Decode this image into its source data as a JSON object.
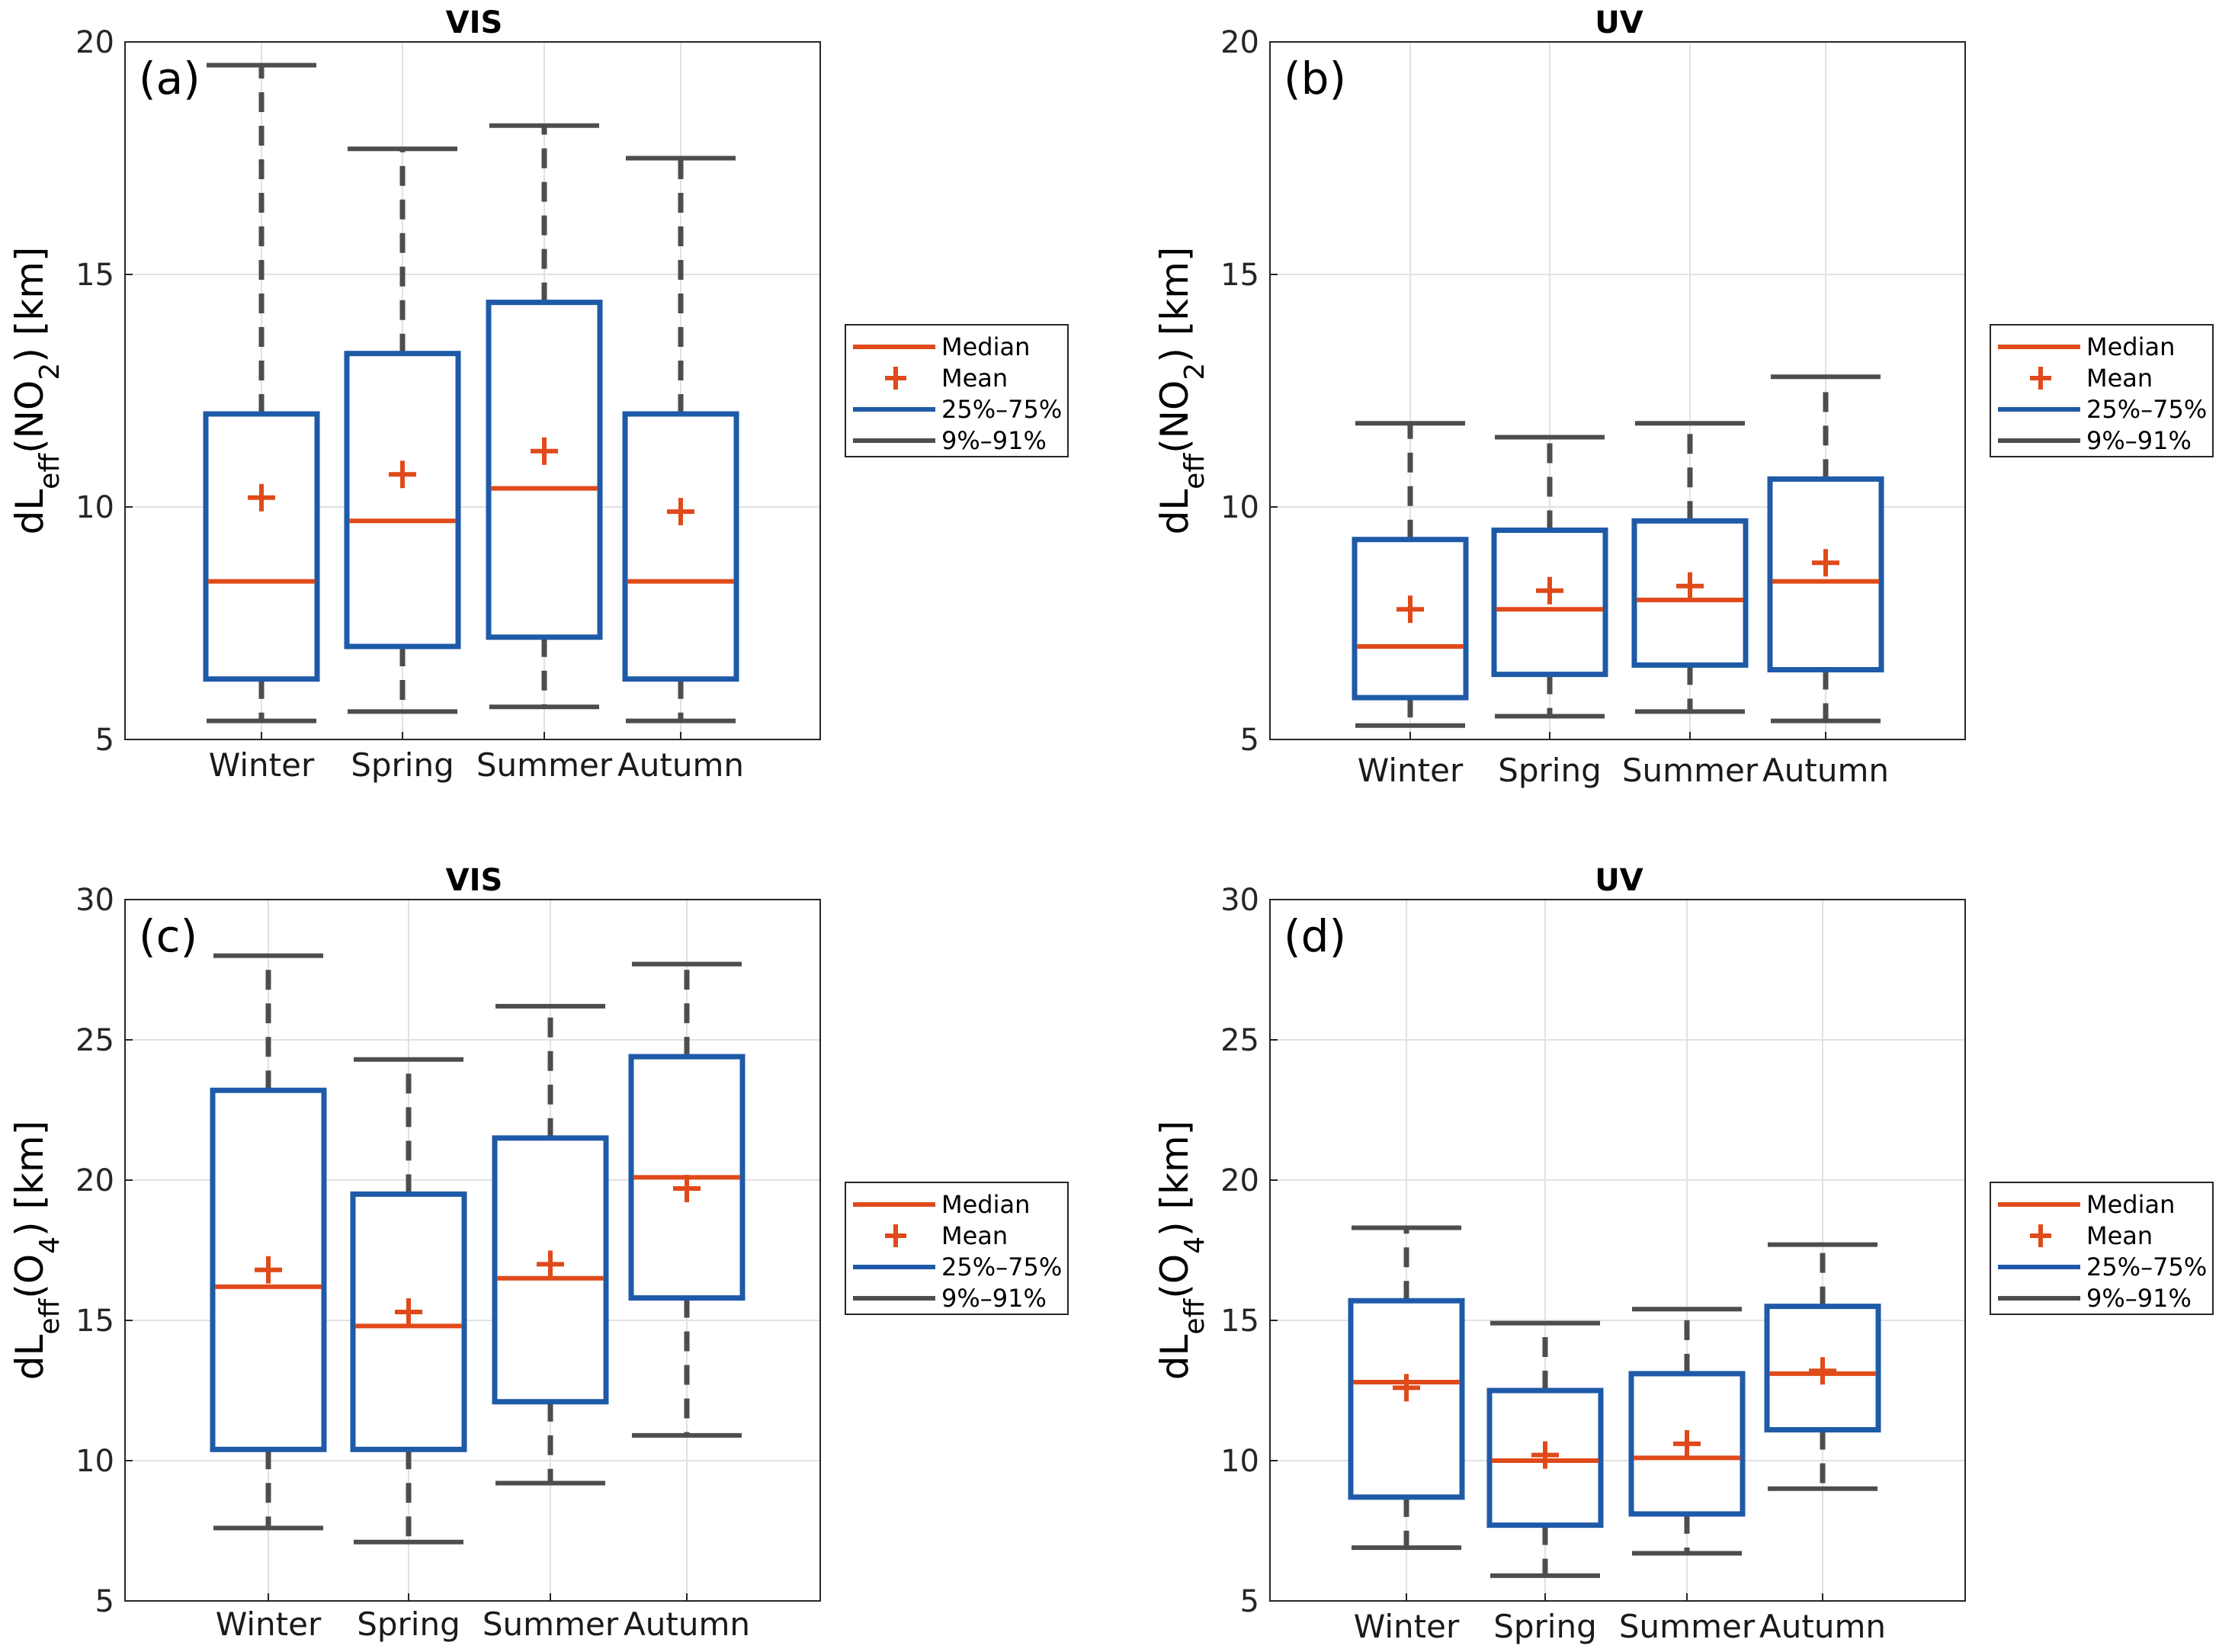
{
  "figure": {
    "panel_letters": [
      "(a)",
      "(b)",
      "(c)",
      "(d)"
    ]
  },
  "colors": {
    "median": "#e04a1a",
    "mean": "#e04a1a",
    "box": "#1f5aa8",
    "whisker": "#4d4d4d",
    "grid": "#e1e1e1",
    "axis": "#262626"
  },
  "legend": {
    "entries": [
      {
        "key": "median",
        "label": "Median",
        "symbol": "line"
      },
      {
        "key": "mean",
        "label": "Mean",
        "symbol": "plus"
      },
      {
        "key": "box",
        "label": "25%–75%",
        "symbol": "line"
      },
      {
        "key": "whisker",
        "label": "9%–91%",
        "symbol": "line"
      }
    ]
  },
  "chart_data": [
    {
      "type": "boxplot",
      "panel": "(a)",
      "title": "VIS",
      "ylabel": {
        "base": "dL",
        "sub": "eff",
        "species": "NO",
        "species_sub": "2",
        "unit": " [km]"
      },
      "ylim": [
        5,
        20
      ],
      "yticks": [
        5,
        10,
        15,
        20
      ],
      "categories": [
        "Winter",
        "Spring",
        "Summer",
        "Autumn"
      ],
      "stats": [
        {
          "p9": 5.4,
          "q1": 6.3,
          "median": 8.4,
          "mean": 10.2,
          "q3": 12.0,
          "p91": 19.5
        },
        {
          "p9": 5.6,
          "q1": 7.0,
          "median": 9.7,
          "mean": 10.7,
          "q3": 13.3,
          "p91": 17.7
        },
        {
          "p9": 5.7,
          "q1": 7.2,
          "median": 10.4,
          "mean": 11.2,
          "q3": 14.4,
          "p91": 18.2
        },
        {
          "p9": 5.4,
          "q1": 6.3,
          "median": 8.4,
          "mean": 9.9,
          "q3": 12.0,
          "p91": 17.5
        }
      ],
      "grid": true,
      "legend_position": "outside-right"
    },
    {
      "type": "boxplot",
      "panel": "(b)",
      "title": "UV",
      "ylabel": {
        "base": "dL",
        "sub": "eff",
        "species": "NO",
        "species_sub": "2",
        "unit": " [km]"
      },
      "ylim": [
        5,
        20
      ],
      "yticks": [
        5,
        10,
        15,
        20
      ],
      "categories": [
        "Winter",
        "Spring",
        "Summer",
        "Autumn"
      ],
      "stats": [
        {
          "p9": 5.3,
          "q1": 5.9,
          "median": 7.0,
          "mean": 7.8,
          "q3": 9.3,
          "p91": 11.8
        },
        {
          "p9": 5.5,
          "q1": 6.4,
          "median": 7.8,
          "mean": 8.2,
          "q3": 9.5,
          "p91": 11.5
        },
        {
          "p9": 5.6,
          "q1": 6.6,
          "median": 8.0,
          "mean": 8.3,
          "q3": 9.7,
          "p91": 11.8
        },
        {
          "p9": 5.4,
          "q1": 6.5,
          "median": 8.4,
          "mean": 8.8,
          "q3": 10.6,
          "p91": 12.8
        }
      ],
      "grid": true,
      "legend_position": "outside-right"
    },
    {
      "type": "boxplot",
      "panel": "(c)",
      "title": "VIS",
      "ylabel": {
        "base": "dL",
        "sub": "eff",
        "species": "O",
        "species_sub": "4",
        "unit": " [km]"
      },
      "ylim": [
        5,
        30
      ],
      "yticks": [
        5,
        10,
        15,
        20,
        25,
        30
      ],
      "categories": [
        "Winter",
        "Spring",
        "Summer",
        "Autumn"
      ],
      "stats": [
        {
          "p9": 7.6,
          "q1": 10.4,
          "median": 16.2,
          "mean": 16.8,
          "q3": 23.2,
          "p91": 28.0
        },
        {
          "p9": 7.1,
          "q1": 10.4,
          "median": 14.8,
          "mean": 15.3,
          "q3": 19.5,
          "p91": 24.3
        },
        {
          "p9": 9.2,
          "q1": 12.1,
          "median": 16.5,
          "mean": 17.0,
          "q3": 21.5,
          "p91": 26.2
        },
        {
          "p9": 10.9,
          "q1": 15.8,
          "median": 20.1,
          "mean": 19.7,
          "q3": 24.4,
          "p91": 27.7
        }
      ],
      "grid": true,
      "legend_position": "outside-right"
    },
    {
      "type": "boxplot",
      "panel": "(d)",
      "title": "UV",
      "ylabel": {
        "base": "dL",
        "sub": "eff",
        "species": "O",
        "species_sub": "4",
        "unit": " [km]"
      },
      "ylim": [
        5,
        30
      ],
      "yticks": [
        5,
        10,
        15,
        20,
        25,
        30
      ],
      "categories": [
        "Winter",
        "Spring",
        "Summer",
        "Autumn"
      ],
      "stats": [
        {
          "p9": 6.9,
          "q1": 8.7,
          "median": 12.8,
          "mean": 12.6,
          "q3": 15.7,
          "p91": 18.3
        },
        {
          "p9": 5.9,
          "q1": 7.7,
          "median": 10.0,
          "mean": 10.2,
          "q3": 12.5,
          "p91": 14.9
        },
        {
          "p9": 6.7,
          "q1": 8.1,
          "median": 10.1,
          "mean": 10.6,
          "q3": 13.1,
          "p91": 15.4
        },
        {
          "p9": 9.0,
          "q1": 11.1,
          "median": 13.1,
          "mean": 13.2,
          "q3": 15.5,
          "p91": 17.7
        }
      ],
      "grid": true,
      "legend_position": "outside-right"
    }
  ]
}
